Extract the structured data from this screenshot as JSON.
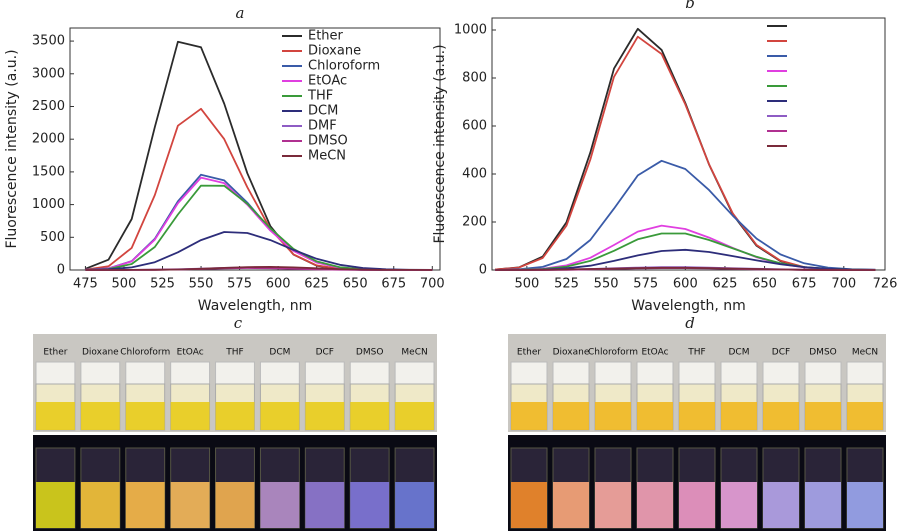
{
  "chart_data": [
    {
      "type": "line",
      "title": "a",
      "x_label": "Wavelength, nm",
      "y_label": "Fluorescence intensity (a.u.)",
      "x": [
        475,
        490,
        505,
        520,
        535,
        550,
        565,
        580,
        595,
        610,
        625,
        640,
        655,
        670,
        685,
        700
      ],
      "xlim": [
        465,
        705
      ],
      "ylim": [
        0,
        3700
      ],
      "xticks": [
        475,
        500,
        525,
        550,
        575,
        600,
        625,
        650,
        675,
        700
      ],
      "yticks": [
        0,
        500,
        1000,
        1500,
        2000,
        2500,
        3000,
        3500
      ],
      "legend": "upper right",
      "series": [
        {
          "name": "Ether",
          "color": "#2b2b2b",
          "values": [
            18,
            158,
            779,
            2184,
            3489,
            3405,
            2544,
            1480,
            670,
            236,
            65,
            14,
            3,
            0,
            0,
            0
          ]
        },
        {
          "name": "Dioxane",
          "color": "#d2453f",
          "values": [
            5,
            57,
            338,
            1145,
            2206,
            2465,
            2002,
            1266,
            624,
            239,
            71,
            17,
            3,
            0,
            0,
            0
          ]
        },
        {
          "name": "Chloroform",
          "color": "#3a5ba8",
          "values": [
            3,
            24,
            136,
            477,
            1051,
            1457,
            1370,
            1030,
            621,
            301,
            117,
            36,
            9,
            2,
            0,
            0
          ]
        },
        {
          "name": "EtOAc",
          "color": "#e03fe0",
          "values": [
            3,
            23,
            132,
            463,
            1020,
            1413,
            1329,
            999,
            602,
            292,
            113,
            35,
            9,
            2,
            0,
            0
          ]
        },
        {
          "name": "THF",
          "color": "#3a9a3a",
          "values": [
            2,
            15,
            91,
            351,
            849,
            1291,
            1288,
            1012,
            638,
            323,
            132,
            42,
            11,
            2,
            0,
            0
          ]
        },
        {
          "name": "DCM",
          "color": "#2d2d7a",
          "values": [
            2,
            10,
            40,
            120,
            270,
            457,
            581,
            566,
            457,
            307,
            172,
            80,
            31,
            10,
            3,
            1
          ]
        },
        {
          "name": "DMF",
          "color": "#8e5cc4",
          "values": [
            0,
            0,
            1,
            4,
            10,
            20,
            32,
            38,
            34,
            25,
            14,
            7,
            3,
            1,
            0,
            0
          ]
        },
        {
          "name": "DMSO",
          "color": "#b03090",
          "values": [
            0,
            0,
            1,
            3,
            8,
            16,
            26,
            30,
            27,
            20,
            11,
            5,
            2,
            1,
            0,
            0
          ]
        },
        {
          "name": "MeCN",
          "color": "#7a2a3a",
          "values": [
            0,
            0,
            1,
            3,
            8,
            18,
            32,
            45,
            48,
            40,
            26,
            14,
            6,
            2,
            1,
            0
          ]
        }
      ]
    },
    {
      "type": "line",
      "title": "b",
      "x_label": "Wavelength, nm",
      "y_label": "Fluorescence intensity (a.u.)",
      "x": [
        480,
        495,
        510,
        525,
        540,
        555,
        570,
        585,
        600,
        615,
        630,
        645,
        660,
        675,
        690,
        705,
        720
      ],
      "xlim": [
        478,
        726
      ],
      "ylim": [
        0,
        1050
      ],
      "xticks": [
        500,
        525,
        550,
        575,
        600,
        625,
        650,
        675,
        700,
        726
      ],
      "yticks": [
        0,
        200,
        400,
        600,
        800,
        1000
      ],
      "legend": "upper right",
      "series": [
        {
          "color": "#2b2b2b",
          "values": [
            2,
            11,
            56,
            199,
            489,
            839,
            1005,
            917,
            696,
            439,
            231,
            101,
            37,
            11,
            3,
            1,
            0
          ]
        },
        {
          "color": "#d2453f",
          "values": [
            2,
            10,
            50,
            185,
            460,
            805,
            972,
            900,
            690,
            440,
            235,
            104,
            39,
            12,
            3,
            1,
            0
          ]
        },
        {
          "color": "#3a5ba8",
          "values": [
            0,
            3,
            13,
            46,
            125,
            256,
            394,
            455,
            421,
            333,
            226,
            131,
            65,
            28,
            10,
            3,
            1
          ]
        },
        {
          "color": "#e03fe0",
          "values": [
            0,
            1,
            5,
            19,
            51,
            104,
            160,
            185,
            171,
            135,
            92,
            53,
            26,
            11,
            4,
            1,
            0
          ]
        },
        {
          "color": "#3a9a3a",
          "values": [
            0,
            1,
            4,
            14,
            38,
            80,
            128,
            152,
            152,
            125,
            90,
            55,
            28,
            12,
            5,
            2,
            0
          ]
        },
        {
          "color": "#2d2d7a",
          "values": [
            0,
            0,
            2,
            7,
            18,
            38,
            61,
            79,
            84,
            75,
            58,
            40,
            24,
            12,
            5,
            2,
            1
          ]
        },
        {
          "color": "#8e5cc4",
          "values": [
            0,
            0,
            1,
            2,
            4,
            7,
            10,
            12,
            12,
            10,
            7,
            5,
            3,
            1,
            1,
            0,
            0
          ]
        },
        {
          "color": "#b03090",
          "values": [
            0,
            0,
            0,
            1,
            3,
            5,
            7,
            8,
            8,
            7,
            5,
            3,
            2,
            1,
            0,
            0,
            0
          ]
        },
        {
          "color": "#7a2a3a",
          "values": [
            0,
            0,
            1,
            2,
            4,
            6,
            8,
            9,
            9,
            8,
            6,
            4,
            2,
            1,
            0,
            0,
            0
          ]
        }
      ]
    }
  ],
  "photos": [
    {
      "title": "c",
      "labels": [
        "Ether",
        "Dioxane",
        "Chloroform",
        "EtOAc",
        "THF",
        "DCM",
        "DCF",
        "DMSO",
        "MeCN"
      ]
    },
    {
      "title": "d",
      "labels": [
        "Ether",
        "Dioxane",
        "Chloroform",
        "EtOAc",
        "THF",
        "DCM",
        "DCF",
        "DMSO",
        "MeCN"
      ]
    }
  ]
}
